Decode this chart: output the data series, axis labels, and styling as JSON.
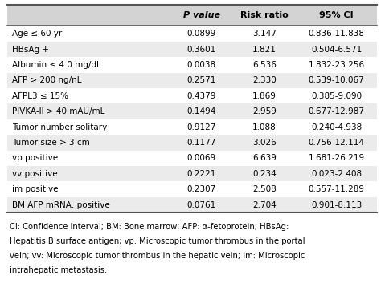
{
  "headers": [
    "",
    "P value",
    "Risk ratio",
    "95% CI"
  ],
  "rows": [
    [
      "Age ≤ 60 yr",
      "0.0899",
      "3.147",
      "0.836-11.838"
    ],
    [
      "HBsAg +",
      "0.3601",
      "1.821",
      "0.504-6.571"
    ],
    [
      "Albumin ≤ 4.0 mg/dL",
      "0.0038",
      "6.536",
      "1.832-23.256"
    ],
    [
      "AFP > 200 ng/nL",
      "0.2571",
      "2.330",
      "0.539-10.067"
    ],
    [
      "AFPL3 ≤ 15%",
      "0.4379",
      "1.869",
      "0.385-9.090"
    ],
    [
      "PIVKA-II > 40 mAU/mL",
      "0.1494",
      "2.959",
      "0.677-12.987"
    ],
    [
      "Tumor number solitary",
      "0.9127",
      "1.088",
      "0.240-4.938"
    ],
    [
      "Tumor size > 3 cm",
      "0.1177",
      "3.026",
      "0.756-12.114"
    ],
    [
      "vp positive",
      "0.0069",
      "6.639",
      "1.681-26.219"
    ],
    [
      "vv positive",
      "0.2221",
      "0.234",
      "0.023-2.408"
    ],
    [
      "im positive",
      "0.2307",
      "2.508",
      "0.557-11.289"
    ],
    [
      "BM AFP mRNA: positive",
      "0.0761",
      "2.704",
      "0.901-8.113"
    ]
  ],
  "footnote_lines": [
    "CI: Confidence interval; BM: Bone marrow; AFP: α-fetoprotein; HBsAg:",
    "Hepatitis B surface antigen; vp: Microscopic tumor thrombus in the portal",
    "vein; vv: Microscopic tumor thrombus in the hepatic vein; im: Microscopic",
    "intrahepatic metastasis."
  ],
  "header_bg": "#d3d3d3",
  "row_alt_bg": "#ebebeb",
  "row_bg": "#ffffff",
  "text_color": "#000000",
  "border_color": "#555555",
  "figsize": [
    4.74,
    3.73
  ],
  "dpi": 100
}
